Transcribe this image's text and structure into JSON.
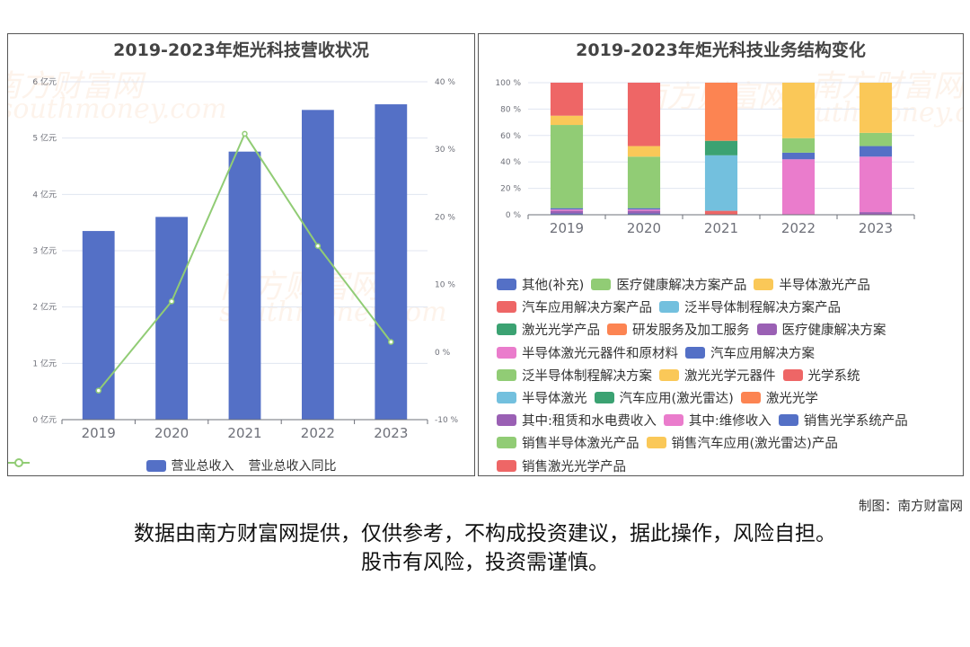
{
  "charts": [
    {
      "title": "2019-2023年炬光科技营收状况",
      "legend": [
        "营业总收入",
        "营业总收入同比"
      ]
    },
    {
      "title": "2019-2023年炬光科技业务结构变化"
    }
  ],
  "chart_data": [
    {
      "type": "bar",
      "title": "2019-2023年炬光科技营收状况",
      "categories": [
        "2019",
        "2020",
        "2021",
        "2022",
        "2023"
      ],
      "series": [
        {
          "name": "营业总收入",
          "type": "bar",
          "axis": "left",
          "values": [
            3.35,
            3.6,
            4.76,
            5.5,
            5.6
          ],
          "color": "#5470c6"
        },
        {
          "name": "营业总收入同比",
          "type": "line",
          "axis": "right",
          "values": [
            -5.7,
            7.5,
            32.3,
            15.7,
            1.5
          ],
          "color": "#91cc75"
        }
      ],
      "y_left": {
        "ticks": [
          "0 亿元",
          "1 亿元",
          "2 亿元",
          "3 亿元",
          "4 亿元",
          "5 亿元",
          "6 亿元"
        ],
        "range": [
          0,
          6
        ],
        "unit": "亿元"
      },
      "y_right": {
        "ticks": [
          "-10 %",
          "0 %",
          "10 %",
          "20 %",
          "30 %",
          "40 %"
        ],
        "range": [
          -10,
          40
        ],
        "unit": "%"
      },
      "grid": true,
      "legend_position": "bottom"
    },
    {
      "type": "bar",
      "stacked": true,
      "percent": true,
      "title": "2019-2023年炬光科技业务结构变化",
      "categories": [
        "2019",
        "2020",
        "2021",
        "2022",
        "2023"
      ],
      "y_ticks": [
        "0 %",
        "20 %",
        "40 %",
        "60 %",
        "80 %",
        "100 %"
      ],
      "ylim": [
        0,
        100
      ],
      "legend_position": "bottom",
      "series": [
        {
          "name": "其他(补充)",
          "color": "#5470c6",
          "values": [
            1,
            1,
            0,
            0,
            0
          ]
        },
        {
          "name": "医疗健康解决方案产品",
          "color": "#91cc75",
          "values": [
            0,
            0,
            0,
            0,
            0
          ]
        },
        {
          "name": "半导体激光产品",
          "color": "#fac858",
          "values": [
            0,
            0,
            0,
            0,
            0
          ]
        },
        {
          "name": "汽车应用解决方案产品",
          "color": "#ee6666",
          "values": [
            0,
            0,
            0,
            0,
            0
          ]
        },
        {
          "name": "泛半导体制程解决方案产品",
          "color": "#73c0de",
          "values": [
            0,
            0,
            0,
            0,
            0
          ]
        },
        {
          "name": "激光光学产品",
          "color": "#3ba272",
          "values": [
            0,
            0,
            0,
            0,
            0
          ]
        },
        {
          "name": "研发服务及加工服务",
          "color": "#fc8452",
          "values": [
            0,
            0,
            0,
            0,
            0
          ]
        },
        {
          "name": "医疗健康解决方案",
          "color": "#9a60b4",
          "values": [
            0,
            0,
            0,
            0,
            2
          ]
        },
        {
          "name": "半导体激光元器件和原材料",
          "color": "#ea7ccc",
          "values": [
            0,
            0,
            0,
            42,
            42
          ]
        },
        {
          "name": "汽车应用解决方案",
          "color": "#5470c6",
          "values": [
            0,
            0,
            0,
            5,
            8
          ]
        },
        {
          "name": "泛半导体制程解决方案",
          "color": "#91cc75",
          "values": [
            0,
            0,
            0,
            11,
            10
          ]
        },
        {
          "name": "激光光学元器件",
          "color": "#fac858",
          "values": [
            0,
            0,
            0,
            42,
            38
          ]
        },
        {
          "name": "光学系统",
          "color": "#ee6666",
          "values": [
            0,
            0,
            3,
            0,
            0
          ]
        },
        {
          "name": "半导体激光",
          "color": "#73c0de",
          "values": [
            0,
            0,
            42,
            0,
            0
          ]
        },
        {
          "name": "汽车应用(激光雷达)",
          "color": "#3ba272",
          "values": [
            0,
            0,
            11,
            0,
            0
          ]
        },
        {
          "name": "激光光学",
          "color": "#fc8452",
          "values": [
            0,
            0,
            44,
            0,
            0
          ]
        },
        {
          "name": "其中:租赁和水电费收入",
          "color": "#9a60b4",
          "values": [
            2,
            2,
            0,
            0,
            0
          ]
        },
        {
          "name": "其中:维修收入",
          "color": "#ea7ccc",
          "values": [
            1,
            1,
            0,
            0,
            0
          ]
        },
        {
          "name": "销售光学系统产品",
          "color": "#5470c6",
          "values": [
            1,
            1,
            0,
            0,
            0
          ]
        },
        {
          "name": "销售半导体激光产品",
          "color": "#91cc75",
          "values": [
            63,
            39,
            0,
            0,
            0
          ]
        },
        {
          "name": "销售汽车应用(激光雷达)产品",
          "color": "#fac858",
          "values": [
            7,
            8,
            0,
            0,
            0
          ]
        },
        {
          "name": "销售激光光学产品",
          "color": "#ee6666",
          "values": [
            25,
            48,
            0,
            0,
            0
          ]
        }
      ]
    }
  ],
  "watermark": {
    "cn": "南方财富网",
    "en": "southmoney.com"
  },
  "source_label": "制图：南方财富网",
  "disclaimer": {
    "line1": "数据由南方财富网提供，仅供参考，不构成投资建议，据此操作，风险自担。",
    "line2": "股市有风险，投资需谨慎。"
  }
}
